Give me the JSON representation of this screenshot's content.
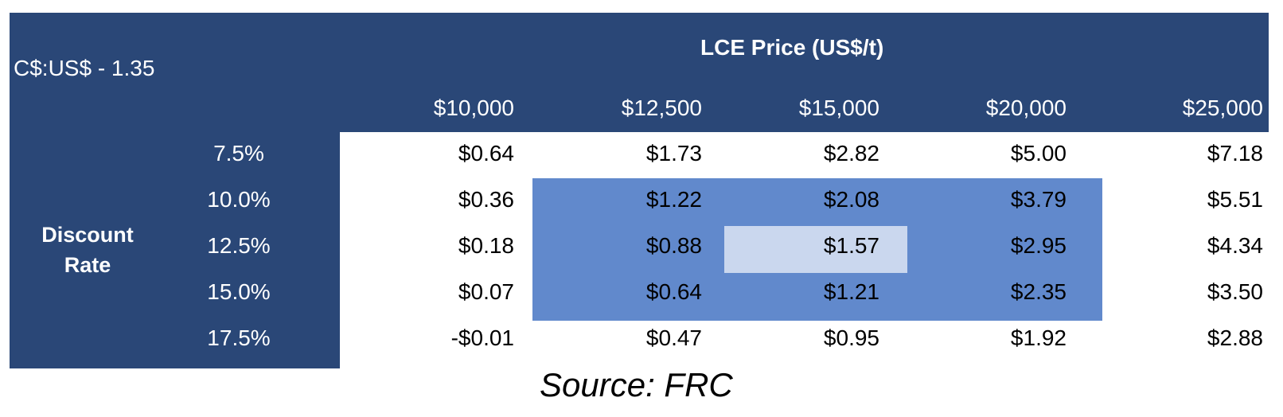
{
  "chart_data": {
    "type": "table",
    "corner_label": "C$:US$ - 1.35",
    "column_title": "LCE Price (US$/t)",
    "columns": [
      "$10,000",
      "$12,500",
      "$15,000",
      "$20,000",
      "$25,000"
    ],
    "row_title": "Discount Rate",
    "rows": [
      "7.5%",
      "10.0%",
      "12.5%",
      "15.0%",
      "17.5%"
    ],
    "values": [
      [
        "$0.64",
        "$1.73",
        "$2.82",
        "$5.00",
        "$7.18"
      ],
      [
        "$0.36",
        "$1.22",
        "$2.08",
        "$3.79",
        "$5.51"
      ],
      [
        "$0.18",
        "$0.88",
        "$1.57",
        "$2.95",
        "$4.34"
      ],
      [
        "$0.07",
        "$0.64",
        "$1.21",
        "$2.35",
        "$3.50"
      ],
      [
        "-$0.01",
        "$0.47",
        "$0.95",
        "$1.92",
        "$2.88"
      ]
    ],
    "highlight_colors": {
      "header": "#2a4777",
      "range": "#6189cc",
      "base_case": "#cad7ee"
    }
  },
  "source": "Source: FRC"
}
